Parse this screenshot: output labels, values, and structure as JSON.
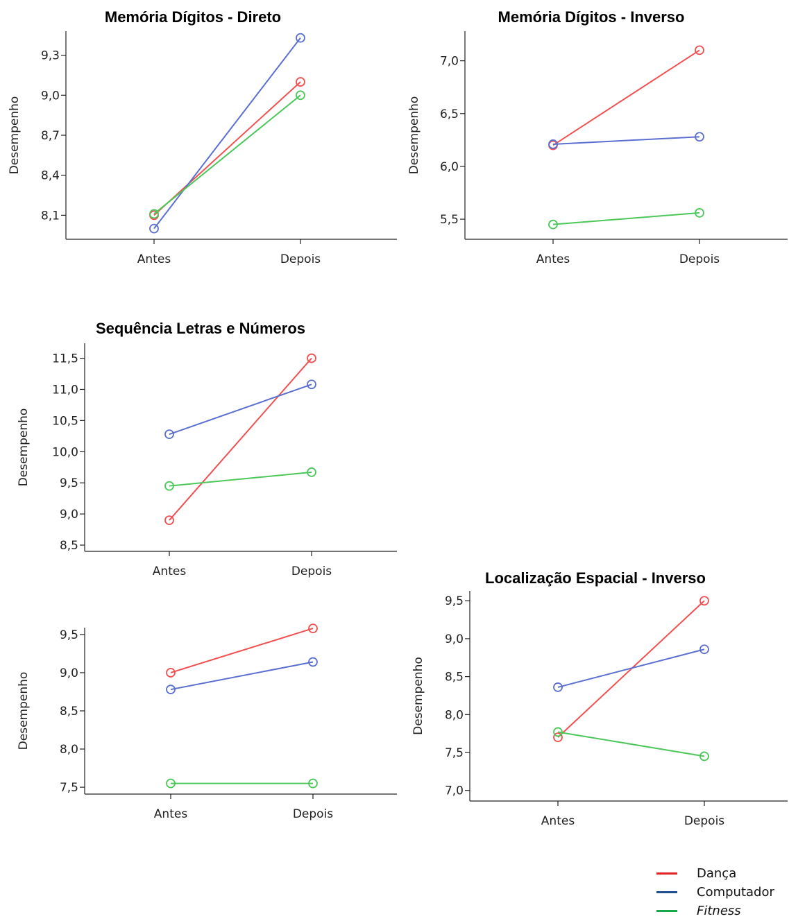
{
  "chart_data": [
    {
      "type": "line",
      "title": "Memória Dígitos - Direto",
      "xlabel": "",
      "ylabel": "Desempenho",
      "categories": [
        "Antes",
        "Depois"
      ],
      "ylim": [
        7.92,
        9.48
      ],
      "yticks": [
        "8,1",
        "8,4",
        "8,7",
        "9,0",
        "9,3"
      ],
      "ytick_values": [
        8.1,
        8.4,
        8.7,
        9.0,
        9.3
      ],
      "series": [
        {
          "name": "Dança",
          "values": [
            8.1,
            9.1
          ]
        },
        {
          "name": "Computador",
          "values": [
            8.0,
            9.43
          ]
        },
        {
          "name": "Fitness",
          "values": [
            8.11,
            9.0
          ]
        }
      ]
    },
    {
      "type": "line",
      "title": "Memória Dígitos - Inverso",
      "xlabel": "",
      "ylabel": "Desempenho",
      "categories": [
        "Antes",
        "Depois"
      ],
      "ylim": [
        5.31,
        7.28
      ],
      "yticks": [
        "5,5",
        "6,0",
        "6,5",
        "7,0"
      ],
      "ytick_values": [
        5.5,
        6.0,
        6.5,
        7.0
      ],
      "series": [
        {
          "name": "Dança",
          "values": [
            6.2,
            7.1
          ]
        },
        {
          "name": "Computador",
          "values": [
            6.21,
            6.28
          ]
        },
        {
          "name": "Fitness",
          "values": [
            5.45,
            5.56
          ]
        }
      ]
    },
    {
      "type": "line",
      "title": "Sequência Letras e Números",
      "xlabel": "",
      "ylabel": "Desempenho",
      "categories": [
        "Antes",
        "Depois"
      ],
      "ylim": [
        8.4,
        11.74
      ],
      "yticks": [
        "8,5",
        "9,0",
        "9,5",
        "10,0",
        "10,5",
        "11,0",
        "11,5"
      ],
      "ytick_values": [
        8.5,
        9.0,
        9.5,
        10.0,
        10.5,
        11.0,
        11.5
      ],
      "series": [
        {
          "name": "Dança",
          "values": [
            8.9,
            11.5
          ]
        },
        {
          "name": "Computador",
          "values": [
            10.28,
            11.08
          ]
        },
        {
          "name": "Fitness",
          "values": [
            9.45,
            9.67
          ]
        }
      ]
    },
    {
      "type": "line",
      "title": "",
      "xlabel": "",
      "ylabel": "Desempenho",
      "categories": [
        "Antes",
        "Depois"
      ],
      "ylim": [
        7.41,
        9.59
      ],
      "yticks": [
        "7,5",
        "8,0",
        "8,5",
        "9,0",
        "9,5"
      ],
      "ytick_values": [
        7.5,
        8.0,
        8.5,
        9.0,
        9.5
      ],
      "series": [
        {
          "name": "Dança",
          "values": [
            9.0,
            9.58
          ]
        },
        {
          "name": "Computador",
          "values": [
            8.78,
            9.14
          ]
        },
        {
          "name": "Fitness",
          "values": [
            7.55,
            7.55
          ]
        }
      ]
    },
    {
      "type": "line",
      "title": "Localização Espacial - Inverso",
      "xlabel": "",
      "ylabel": "Desempenho",
      "categories": [
        "Antes",
        "Depois"
      ],
      "ylim": [
        6.86,
        9.63
      ],
      "yticks": [
        "7,0",
        "7,5",
        "8,0",
        "8,5",
        "9,0",
        "9,5"
      ],
      "ytick_values": [
        7.0,
        7.5,
        8.0,
        8.5,
        9.0,
        9.5
      ],
      "series": [
        {
          "name": "Dança",
          "values": [
            7.7,
            9.5
          ]
        },
        {
          "name": "Computador",
          "values": [
            8.36,
            8.86
          ]
        },
        {
          "name": "Fitness",
          "values": [
            7.77,
            7.45
          ]
        }
      ]
    }
  ],
  "legend": {
    "items": [
      {
        "label": "Dança",
        "color": "#e02020",
        "italic": false
      },
      {
        "label": "Computador",
        "color": "#1f4e8c",
        "italic": false
      },
      {
        "label": "Fitness",
        "color": "#18a84a",
        "italic": true
      }
    ]
  },
  "colors": {
    "Dança": "#f25050",
    "Computador": "#5b6fd0",
    "Fitness": "#4cc75a"
  }
}
